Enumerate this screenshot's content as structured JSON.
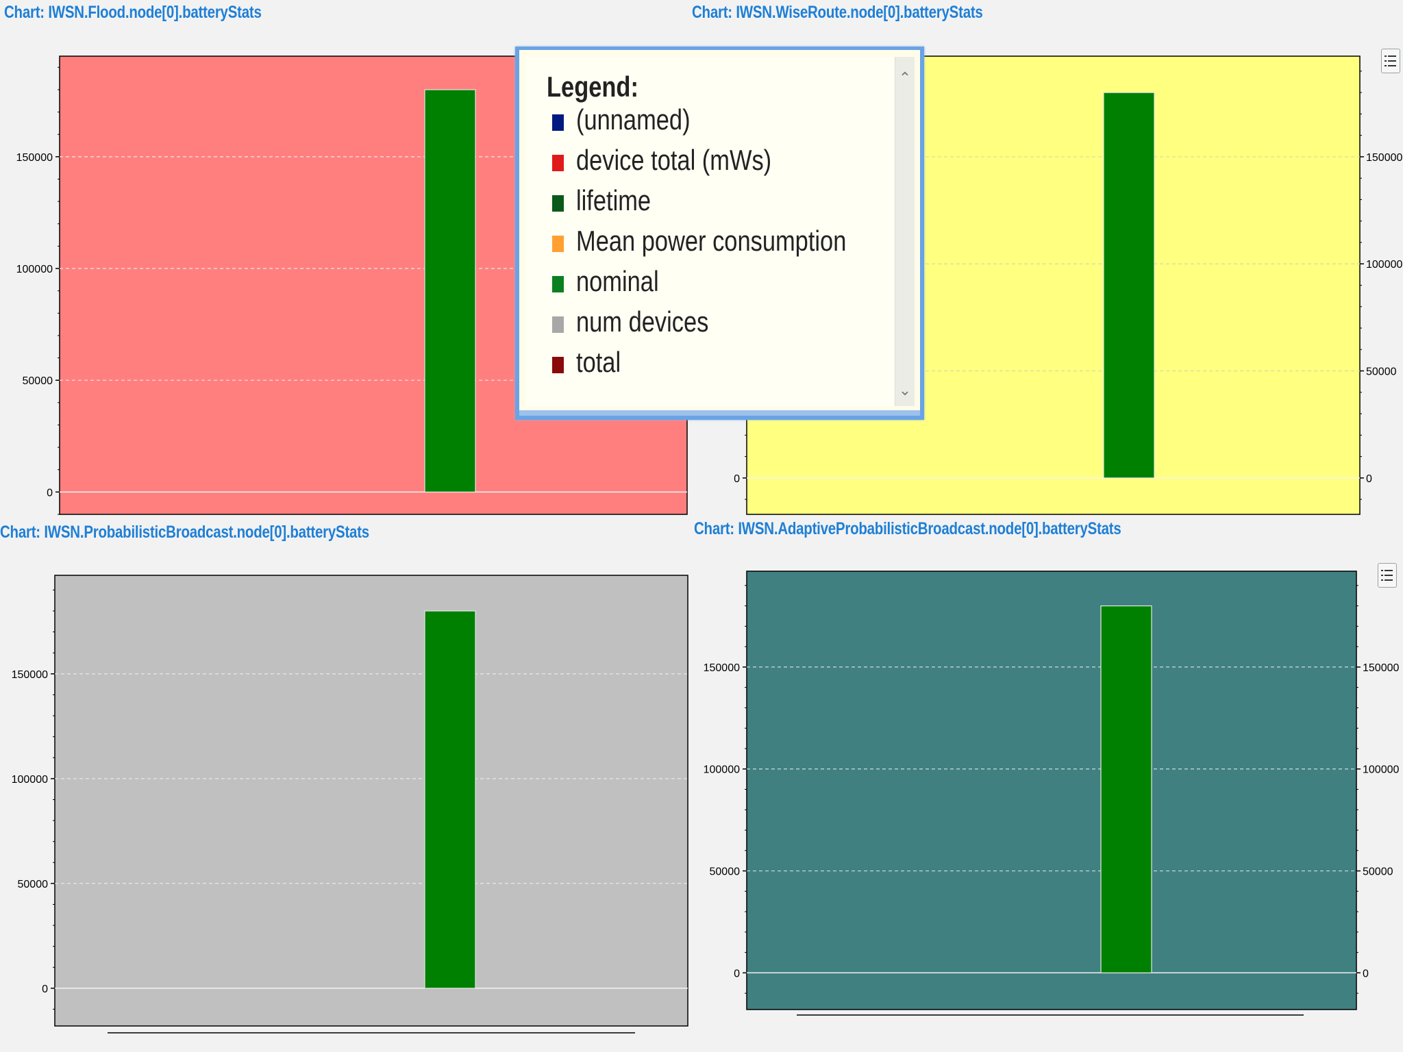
{
  "charts": [
    {
      "title": "Chart: IWSN.Flood.node[0].batteryStats",
      "background": "#ff7f7f"
    },
    {
      "title": "Chart: IWSN.WiseRoute.node[0].batteryStats",
      "background": "#ffff80"
    },
    {
      "title": "Chart: IWSN.ProbabilisticBroadcast.node[0].batteryStats",
      "background": "#c0c0c0"
    },
    {
      "title": "Chart: IWSN.AdaptiveProbabilisticBroadcast.node[0].batteryStats",
      "background": "#408080"
    }
  ],
  "legend": {
    "title": "Legend:",
    "items": [
      {
        "label": "(unnamed)",
        "color": "#001a80"
      },
      {
        "label": "device total (mWs)",
        "color": "#e01a1a"
      },
      {
        "label": "lifetime",
        "color": "#0a5a1a"
      },
      {
        "label": "Mean power consumption",
        "color": "#ffa030"
      },
      {
        "label": "nominal",
        "color": "#0a8020"
      },
      {
        "label": "num devices",
        "color": "#a8a8a8"
      },
      {
        "label": "total",
        "color": "#8a0a0a"
      }
    ],
    "scroll_up_icon": "chevron-up-icon",
    "scroll_down_icon": "chevron-down-icon"
  },
  "chart_data": [
    {
      "type": "bar",
      "title": "Chart: IWSN.Flood.node[0].batteryStats",
      "xlabel": "",
      "ylabel": "",
      "series": [
        {
          "name": "nominal",
          "values": [
            180000
          ],
          "color": "#008000"
        }
      ],
      "ylim": [
        -10000,
        195000
      ],
      "yticks": [
        0,
        50000,
        100000,
        150000
      ],
      "grid": true,
      "axes": "left"
    },
    {
      "type": "bar",
      "title": "Chart: IWSN.WiseRoute.node[0].batteryStats",
      "xlabel": "",
      "ylabel": "",
      "series": [
        {
          "name": "nominal",
          "values": [
            180000
          ],
          "color": "#008000"
        }
      ],
      "ylim": [
        -17000,
        197000
      ],
      "yticks": [
        0,
        50000,
        100000,
        150000
      ],
      "grid": true,
      "axes": "both"
    },
    {
      "type": "bar",
      "title": "Chart: IWSN.ProbabilisticBroadcast.node[0].batteryStats",
      "xlabel": "",
      "ylabel": "",
      "series": [
        {
          "name": "nominal",
          "values": [
            180000
          ],
          "color": "#008000"
        }
      ],
      "ylim": [
        -18000,
        197000
      ],
      "yticks": [
        0,
        50000,
        100000,
        150000
      ],
      "grid": true,
      "axes": "left"
    },
    {
      "type": "bar",
      "title": "Chart: IWSN.AdaptiveProbabilisticBroadcast.node[0].batteryStats",
      "xlabel": "",
      "ylabel": "",
      "series": [
        {
          "name": "nominal",
          "values": [
            180000
          ],
          "color": "#008000"
        }
      ],
      "ylim": [
        -18000,
        197000
      ],
      "yticks": [
        0,
        50000,
        100000,
        150000
      ],
      "grid": true,
      "axes": "both"
    }
  ]
}
